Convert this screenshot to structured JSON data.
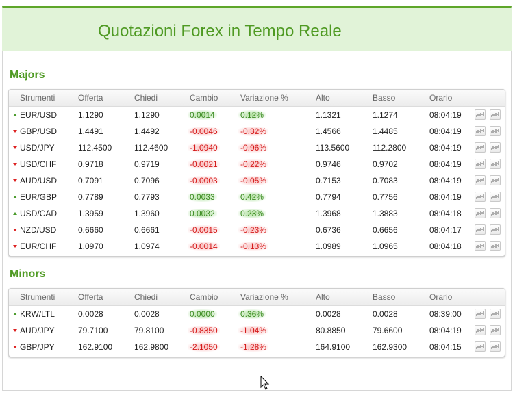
{
  "header": {
    "title": "Quotazioni Forex in Tempo Reale"
  },
  "columns": [
    "Strumenti",
    "Offerta",
    "Chiedi",
    "Cambio",
    "Variazione %",
    "Alto",
    "Basso",
    "Orario"
  ],
  "colors": {
    "accent": "#4f9a23",
    "positive": "#3c8c22",
    "negative": "#d41a1a",
    "banner": "#e1f3d8"
  },
  "sections": [
    {
      "title": "Majors",
      "rows": [
        {
          "dir": "up",
          "symbol": "EUR/USD",
          "bid": "1.1290",
          "ask": "1.1290",
          "change": "0.0014",
          "pct": "0.12%",
          "high": "1.1321",
          "low": "1.1274",
          "time": "08:04:19"
        },
        {
          "dir": "down",
          "symbol": "GBP/USD",
          "bid": "1.4491",
          "ask": "1.4492",
          "change": "-0.0046",
          "pct": "-0.32%",
          "high": "1.4566",
          "low": "1.4485",
          "time": "08:04:19"
        },
        {
          "dir": "down",
          "symbol": "USD/JPY",
          "bid": "112.4500",
          "ask": "112.4600",
          "change": "-1.0940",
          "pct": "-0.96%",
          "high": "113.5600",
          "low": "112.2800",
          "time": "08:04:19"
        },
        {
          "dir": "down",
          "symbol": "USD/CHF",
          "bid": "0.9718",
          "ask": "0.9719",
          "change": "-0.0021",
          "pct": "-0.22%",
          "high": "0.9746",
          "low": "0.9702",
          "time": "08:04:19"
        },
        {
          "dir": "down",
          "symbol": "AUD/USD",
          "bid": "0.7091",
          "ask": "0.7096",
          "change": "-0.0003",
          "pct": "-0.05%",
          "high": "0.7153",
          "low": "0.7083",
          "time": "08:04:19"
        },
        {
          "dir": "up",
          "symbol": "EUR/GBP",
          "bid": "0.7789",
          "ask": "0.7793",
          "change": "0.0033",
          "pct": "0.42%",
          "high": "0.7794",
          "low": "0.7756",
          "time": "08:04:19"
        },
        {
          "dir": "up",
          "symbol": "USD/CAD",
          "bid": "1.3959",
          "ask": "1.3960",
          "change": "0.0032",
          "pct": "0.23%",
          "high": "1.3968",
          "low": "1.3883",
          "time": "08:04:18"
        },
        {
          "dir": "down",
          "symbol": "NZD/USD",
          "bid": "0.6660",
          "ask": "0.6661",
          "change": "-0.0015",
          "pct": "-0.23%",
          "high": "0.6736",
          "low": "0.6656",
          "time": "08:04:17"
        },
        {
          "dir": "down",
          "symbol": "EUR/CHF",
          "bid": "1.0970",
          "ask": "1.0974",
          "change": "-0.0014",
          "pct": "-0.13%",
          "high": "1.0989",
          "low": "1.0965",
          "time": "08:04:18"
        }
      ]
    },
    {
      "title": "Minors",
      "rows": [
        {
          "dir": "up",
          "symbol": "KRW/LTL",
          "bid": "0.0028",
          "ask": "0.0028",
          "change": "0.0000",
          "pct": "0.36%",
          "high": "0.0028",
          "low": "0.0028",
          "time": "08:39:00"
        },
        {
          "dir": "down",
          "symbol": "AUD/JPY",
          "bid": "79.7100",
          "ask": "79.8100",
          "change": "-0.8350",
          "pct": "-1.04%",
          "high": "80.8850",
          "low": "79.6600",
          "time": "08:04:19"
        },
        {
          "dir": "down",
          "symbol": "GBP/JPY",
          "bid": "162.9100",
          "ask": "162.9800",
          "change": "-2.1050",
          "pct": "-1.28%",
          "high": "164.9100",
          "low": "162.9300",
          "time": "08:04:15"
        }
      ]
    }
  ]
}
